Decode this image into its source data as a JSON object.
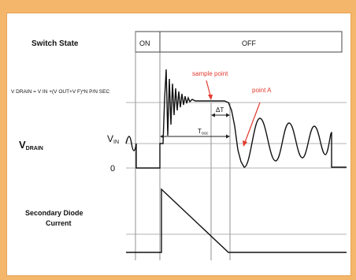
{
  "labels": {
    "switch_state": "Switch State",
    "state_on": "ON",
    "state_off": "OFF",
    "vdrain_formula": "V DRAIN = V IN +(V OUT+V F)*N P/N SEC",
    "vdrain_main": "V",
    "vdrain_sub": "DRAIN",
    "vin_main": "V",
    "vin_sub": "IN",
    "zero": "0",
    "secondary_diode_line1": "Secondary Diode",
    "secondary_diode_line2": "Current",
    "sample_point": "sample point",
    "point_a": "point A",
    "delta_t": "ΔT",
    "t_osc_main": "T",
    "t_osc_sub": "osc"
  },
  "colors": {
    "background": "#f4b66a",
    "panel": "#ffffff",
    "trace": "#111111",
    "annotation": "#e23b2e",
    "guide": "#8a8a8a"
  }
}
